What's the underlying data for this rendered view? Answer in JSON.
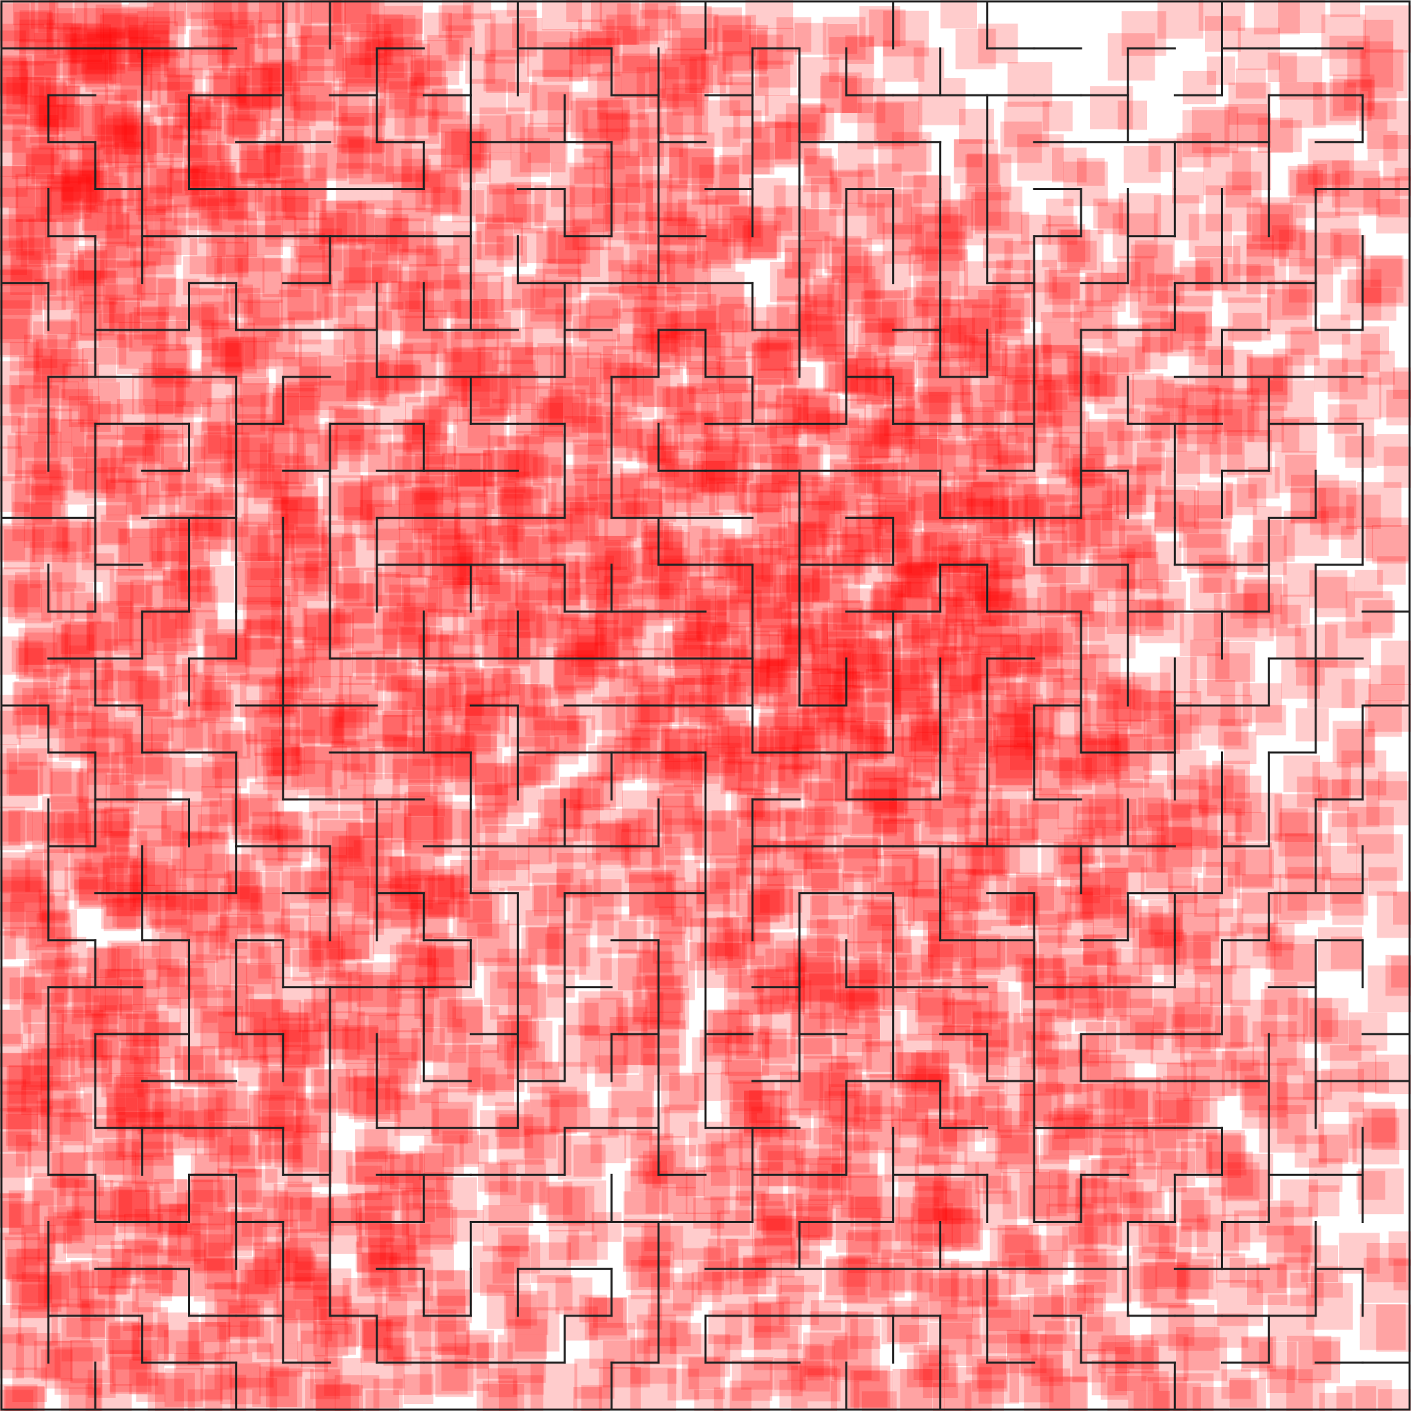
{
  "maze": {
    "title": "",
    "grid_cols": 30,
    "grid_rows": 30,
    "wall_color": "#222222",
    "heat_color": "#ff0000",
    "background_color": "#ffffff",
    "heat_rows": [
      "999988775443455433211100112222",
      "999977665433455433221100122223",
      "999888765433454433322111123333",
      "989887655433444433333222222333",
      "888776555443445443333332223333",
      "777666545443455444443333333333",
      "677555445554455545555544433322",
      "576555445665555666677764443322",
      "575555555775567777787754443333",
      "575555555775677777787655443322",
      "566556556776778777888755443322",
      "556556666776778777788854433222",
      "556556767776778888889854433222",
      "556556767776778999999853322222",
      "556555767766778999999754433222",
      "556555766655666888987755433222",
      "556555666554556787777655433222",
      "557555655544455676666655443322",
      "557555555543344566666655443322",
      "557555555543344566666555443322",
      "567555555543344566665555443322",
      "668455555443344556665555443322",
      "768455555433333555554455443322",
      "768455555433333555554455433222",
      "768555554433333555544455433222",
      "767555554433333555544445433222",
      "776555555433333454444444433322",
      "665555555433333444444444433322",
      "665555555333333444444444433322",
      "555555555333333444444444433322"
    ]
  }
}
